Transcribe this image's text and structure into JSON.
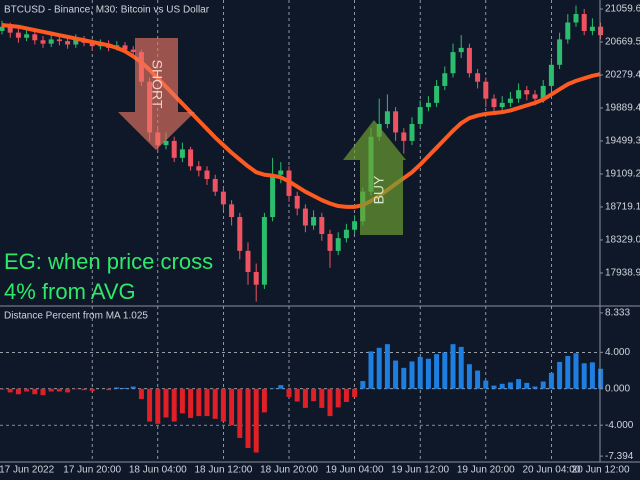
{
  "chart_data": [
    {
      "type": "candlestick",
      "title": "BTCUSD - Binance, M30:  Bitcoin vs US Dollar",
      "up_color": "#2dbd6e",
      "down_color": "#ef5361",
      "open": [
        20800,
        20850,
        20780,
        20720,
        20760,
        20690,
        20650,
        20700,
        20680,
        20640,
        20700,
        20660,
        20620,
        20650,
        20600,
        20630,
        20580,
        20550,
        20200,
        19600,
        19450,
        19500,
        19300,
        19400,
        19200,
        19150,
        19050,
        18900,
        18750,
        18600,
        18200,
        17950,
        17800,
        18600,
        19100,
        19150,
        18850,
        18700,
        18500,
        18600,
        18400,
        18200,
        18350,
        18450,
        18550,
        18900,
        19550,
        19700,
        19850,
        19600,
        19500,
        19700,
        19900,
        19950,
        20150,
        20300,
        20550,
        20600,
        20300,
        20200,
        20000,
        19900,
        19950,
        20000,
        20100,
        20050,
        20000,
        20150,
        20400,
        20700,
        20900,
        21000,
        20800,
        20850
      ],
      "high": [
        20920,
        20900,
        20830,
        20820,
        20800,
        20740,
        20760,
        20750,
        20720,
        20760,
        20740,
        20700,
        20700,
        20690,
        20680,
        20670,
        20620,
        20580,
        20250,
        19650,
        19600,
        19550,
        19480,
        19430,
        19260,
        19200,
        19100,
        18950,
        18800,
        18650,
        18300,
        18050,
        18650,
        19300,
        19250,
        19200,
        18900,
        18750,
        18680,
        18650,
        18450,
        18420,
        18520,
        18620,
        18950,
        19650,
        20000,
        20050,
        19900,
        19650,
        19780,
        19980,
        20030,
        20220,
        20380,
        20650,
        20750,
        20650,
        20350,
        20250,
        20050,
        20030,
        20080,
        20180,
        20150,
        20100,
        20220,
        20480,
        20780,
        21000,
        21100,
        21060,
        20950,
        20900
      ],
      "low": [
        20760,
        20720,
        20660,
        20680,
        20640,
        20600,
        20610,
        20630,
        20590,
        20600,
        20620,
        20570,
        20580,
        20560,
        20570,
        20540,
        20500,
        20150,
        19500,
        19380,
        19400,
        19250,
        19250,
        19150,
        19080,
        18980,
        18850,
        18680,
        18500,
        18100,
        17800,
        17600,
        17750,
        18550,
        19000,
        18780,
        18620,
        18420,
        18450,
        18320,
        18000,
        18150,
        18300,
        18400,
        18500,
        18850,
        19500,
        19650,
        19500,
        19350,
        19450,
        19650,
        19850,
        19900,
        20100,
        20250,
        20480,
        20250,
        20120,
        19900,
        19820,
        19850,
        19900,
        19950,
        19980,
        19920,
        19950,
        20100,
        20350,
        20650,
        20850,
        20750,
        20750,
        20700
      ],
      "close": [
        20850,
        20780,
        20720,
        20760,
        20690,
        20650,
        20700,
        20680,
        20640,
        20700,
        20660,
        20620,
        20650,
        20600,
        20630,
        20580,
        20550,
        20200,
        19600,
        19450,
        19500,
        19300,
        19400,
        19200,
        19150,
        19050,
        18900,
        18750,
        18600,
        18200,
        17950,
        17800,
        18600,
        19100,
        19150,
        18850,
        18700,
        18500,
        18600,
        18400,
        18200,
        18350,
        18450,
        18550,
        18900,
        19550,
        19700,
        19850,
        19600,
        19500,
        19700,
        19900,
        19950,
        20150,
        20300,
        20550,
        20600,
        20300,
        20200,
        20000,
        19900,
        19950,
        20000,
        20100,
        20050,
        20000,
        20150,
        20400,
        20700,
        20900,
        21000,
        20800,
        20850,
        20750
      ],
      "ma": {
        "color": "#ff5a1f",
        "values": [
          20870,
          20860,
          20850,
          20830,
          20810,
          20790,
          20770,
          20750,
          20730,
          20710,
          20690,
          20670,
          20650,
          20630,
          20600,
          20560,
          20500,
          20430,
          20340,
          20240,
          20140,
          20040,
          19940,
          19840,
          19740,
          19640,
          19540,
          19450,
          19360,
          19280,
          19200,
          19130,
          19100,
          19090,
          19070,
          19020,
          18960,
          18900,
          18850,
          18800,
          18760,
          18730,
          18720,
          18720,
          18740,
          18790,
          18850,
          18920,
          18990,
          19060,
          19130,
          19220,
          19320,
          19420,
          19520,
          19620,
          19710,
          19770,
          19800,
          19820,
          19830,
          19840,
          19860,
          19890,
          19920,
          19950,
          19990,
          20050,
          20110,
          20170,
          20210,
          20240,
          20270,
          20290
        ]
      },
      "ylim": [
        17560,
        21166
      ],
      "yticks": [
        17938.9,
        {
          "value": 18329,
          "label": "18329.0"
        },
        18719.1,
        19109.2,
        19499.3,
        19889.4,
        20279.4,
        20669.5,
        21059.6
      ],
      "annotations": [
        {
          "text": "SHORT"
        },
        {
          "text": "BUY"
        }
      ],
      "note": [
        "EG: when price cross",
        "4% from AVG"
      ],
      "note_color": "#2ee86a"
    },
    {
      "type": "bar",
      "title": "Distance Percent from MA 1.025",
      "positive_color": "#1f7fe0",
      "negative_color": "#e01f26",
      "categories": [
        null,
        null,
        null,
        "17 Jun 2022",
        null,
        null,
        null,
        null,
        null,
        null,
        null,
        "17 Jun 20:00",
        null,
        null,
        null,
        null,
        null,
        null,
        null,
        "18 Jun 04:00",
        null,
        null,
        null,
        null,
        null,
        null,
        null,
        "18 Jun 12:00",
        null,
        null,
        null,
        null,
        null,
        null,
        null,
        "18 Jun 20:00",
        null,
        null,
        null,
        null,
        null,
        null,
        null,
        "19 Jun 04:00",
        null,
        null,
        null,
        null,
        null,
        null,
        null,
        "19 Jun 12:00",
        null,
        null,
        null,
        null,
        null,
        null,
        null,
        "19 Jun 20:00",
        null,
        null,
        null,
        null,
        null,
        null,
        null,
        "20 Jun 04:00",
        null,
        null,
        null,
        null,
        null,
        "20 Jun 12:00"
      ],
      "values": [
        -0.1,
        -0.4,
        -0.6,
        -0.3,
        -0.6,
        -0.7,
        -0.3,
        -0.3,
        -0.4,
        -0.05,
        -0.15,
        -0.24,
        0,
        -0.15,
        0.15,
        0.1,
        0.24,
        -1.12,
        -3.6,
        -3.85,
        -3.15,
        -3.6,
        -2.7,
        -3.2,
        -3.0,
        -3.0,
        -3.3,
        -3.6,
        -4.0,
        -5.4,
        -6.5,
        -7.0,
        -2.6,
        0.05,
        0.4,
        -0.9,
        -1.4,
        -2.1,
        -1.35,
        -2.1,
        -3.0,
        -2.05,
        -1.45,
        -0.9,
        0.85,
        4.1,
        4.5,
        4.9,
        3.1,
        2.3,
        3.0,
        3.5,
        3.3,
        3.8,
        4.0,
        4.9,
        4.6,
        2.7,
        2.0,
        0.9,
        0.35,
        0.55,
        0.7,
        1.06,
        0.65,
        0.25,
        0.8,
        1.75,
        2.95,
        3.6,
        3.9,
        2.8,
        2.9,
        2.2
      ],
      "ylim": [
        -8.04,
        8.98
      ],
      "yticks": [
        -7.394,
        {
          "value": -4,
          "label": "-4.000"
        },
        {
          "value": 0,
          "label": "0.000"
        },
        {
          "value": 4,
          "label": "4.000"
        },
        8.333
      ]
    }
  ]
}
